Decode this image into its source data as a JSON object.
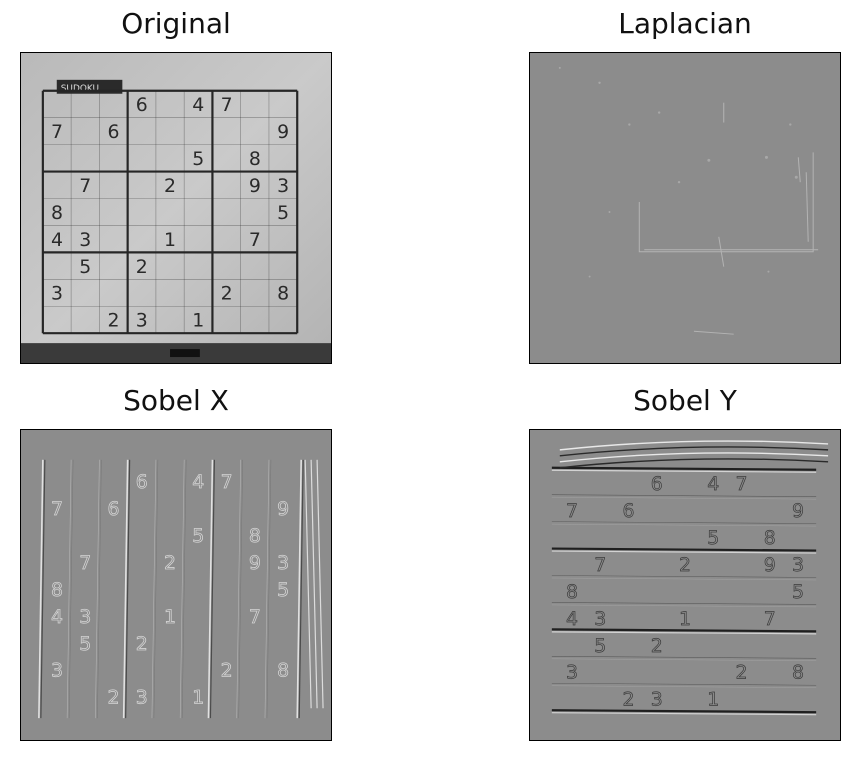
{
  "panels": [
    {
      "id": "original",
      "title": "Original"
    },
    {
      "id": "laplacian",
      "title": "Laplacian"
    },
    {
      "id": "sobel_x",
      "title": "Sobel X"
    },
    {
      "id": "sobel_y",
      "title": "Sobel Y"
    }
  ],
  "sudoku": {
    "header_label": "SUDOKU",
    "digits": [
      {
        "r": 0,
        "c": 3,
        "v": "6"
      },
      {
        "r": 0,
        "c": 5,
        "v": "4"
      },
      {
        "r": 0,
        "c": 6,
        "v": "7"
      },
      {
        "r": 1,
        "c": 0,
        "v": "7"
      },
      {
        "r": 1,
        "c": 2,
        "v": "6"
      },
      {
        "r": 1,
        "c": 8,
        "v": "9"
      },
      {
        "r": 2,
        "c": 5,
        "v": "5"
      },
      {
        "r": 2,
        "c": 7,
        "v": "8"
      },
      {
        "r": 3,
        "c": 1,
        "v": "7"
      },
      {
        "r": 3,
        "c": 4,
        "v": "2"
      },
      {
        "r": 3,
        "c": 7,
        "v": "9"
      },
      {
        "r": 3,
        "c": 8,
        "v": "3"
      },
      {
        "r": 4,
        "c": 0,
        "v": "8"
      },
      {
        "r": 4,
        "c": 8,
        "v": "5"
      },
      {
        "r": 5,
        "c": 0,
        "v": "4"
      },
      {
        "r": 5,
        "c": 1,
        "v": "3"
      },
      {
        "r": 5,
        "c": 4,
        "v": "1"
      },
      {
        "r": 5,
        "c": 7,
        "v": "7"
      },
      {
        "r": 6,
        "c": 1,
        "v": "5"
      },
      {
        "r": 6,
        "c": 3,
        "v": "2"
      },
      {
        "r": 7,
        "c": 0,
        "v": "3"
      },
      {
        "r": 7,
        "c": 6,
        "v": "2"
      },
      {
        "r": 7,
        "c": 8,
        "v": "8"
      },
      {
        "r": 8,
        "c": 2,
        "v": "2"
      },
      {
        "r": 8,
        "c": 3,
        "v": "3"
      },
      {
        "r": 8,
        "c": 5,
        "v": "1"
      }
    ]
  },
  "colors": {
    "paper": "#c9c9c9",
    "edge_background": "#8c8c8c",
    "grid_line": "#262626"
  }
}
